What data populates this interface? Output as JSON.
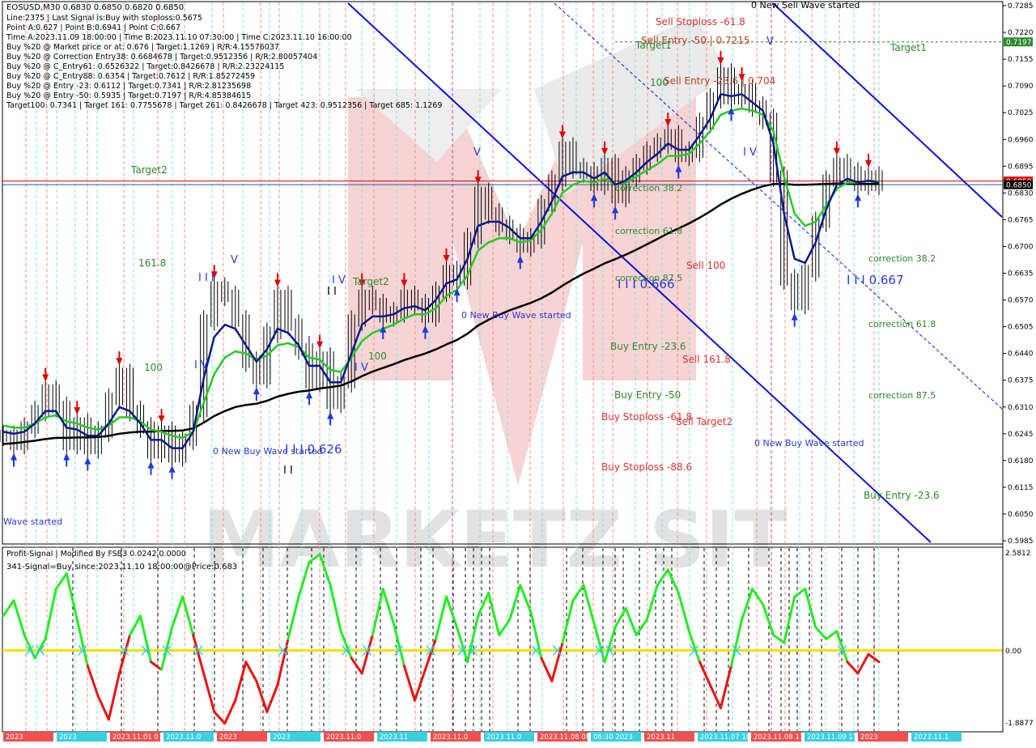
{
  "header": {
    "symbol_line": "EOSUSD,M30  0.6830 0.6850 0.6820 0.6850",
    "info_lines": [
      "Line:2375 | Last Signal is:Buy with stoploss:0.5675",
      "Point A:0.627 | Point B:0.6941 | Point C:0.667",
      "Time A:2023.11.09 18:00:00 | Time B:2023.11.10 07:30:00 | Time C:2023.11.10 16:00:00",
      "Buy %20 @ Market price or at: 0.676 | Target:1.1269 | R/R:4.15576037",
      "Buy %20 @ Correction Entry38: 0.6684678 | Target:0.9512356 | R/R:2.80057404",
      "Buy %20 @ C_Entry61: 0.6526322 | Target:0.8426678 | R/R:2.23224115",
      "Buy %20 @ C_Entry88: 0.6354 | Target:0.7612 | R/R:1.85272459",
      "Buy %20 @ Entry -23: 0.6112 | Target:0.7341 | R/R:2.81235698",
      "Buy %20 @ Entry -50: 0.5935 | Target:0.7197 | R/R:4.85384615",
      "Target100: 0.7341 | Target 161: 0.7755678 | Target 261: 0.8426678 | Target 423: 0.9512356 | Target 685: 1.1269"
    ]
  },
  "indicator": {
    "title": "Profit-Signal | Modified By FSB3 0.0242 0.0000",
    "signal_text": "341-Signal=Buy since:2023.11.10 18:00:00@Price:0.683"
  },
  "price_axis": {
    "ticks": [
      "0.7285",
      "0.7220",
      "0.7155",
      "0.7090",
      "0.7025",
      "0.6960",
      "0.6895",
      "0.6830",
      "0.6765",
      "0.6700",
      "0.6635",
      "0.6570",
      "0.6505",
      "0.6440",
      "0.6375",
      "0.6310",
      "0.6245",
      "0.6180",
      "0.6115",
      "0.6050",
      "0.5985"
    ],
    "badges": {
      "target1": "0.7197",
      "red_line": "0.6859",
      "current": "0.6850"
    }
  },
  "indicator_axis": {
    "ticks": [
      "2.5812",
      "0.00",
      "-1.8877"
    ]
  },
  "annotations": {
    "sell_stoploss_618": "Sell Stoploss -61.8",
    "sell_entry_50": "Sell Entry -50 | 0.7215",
    "target1_left": "Target1",
    "target1_right": "Target1",
    "num_100_top": "100",
    "sell_entry_236": "Sell Entry -23.6 | 0.704",
    "target2_left": "Target2",
    "target2_mid": "Target2",
    "num_1618": "161.8",
    "num_100_left": "100",
    "num_100_mid": "100",
    "correction_382_mid": "correction 38.2",
    "correction_618_mid": "correction 61.8",
    "correction_875_mid": "correction 87.5",
    "sell_100": "Sell 100",
    "pt_0666": "I I I 0.666",
    "pt_0667": "I I I 0.667",
    "pt_0626": "I I I 0.626",
    "new_buy_wave_mid": "0 New Buy Wave started",
    "new_buy_wave_left": "0 New Buy Wave started",
    "new_buy_wave_right": "0 New Buy Wave started",
    "wave_started_edge": "Wave started",
    "new_sell_wave": "0 New Sell Wave started",
    "buy_entry_236_mid": "Buy Entry -23.6",
    "sell_1618": "Sell 161.8",
    "buy_entry_50": "Buy Entry -50",
    "buy_stoploss_618": "Buy Stoploss -61.8",
    "sell_target2": "Sell Target2",
    "buy_stoploss_886": "Buy Stoploss -88.6",
    "correction_382_right": "correction 38.2",
    "correction_618_right": "correction 61.8",
    "correction_875_right": "correction 87.5",
    "buy_entry_236_right": "Buy Entry -23.6",
    "wave_v_1": "V",
    "wave_v_2": "V",
    "wave_v_3": "V",
    "wave_iv_1": "I V",
    "wave_iv_2": "I V",
    "wave_iv_3": "I V",
    "wave_iii_1": "I I I",
    "wave_i": "I",
    "wave_iv_4": "I V",
    "wave_ii": "I I",
    "wave_ii_2": "I I"
  },
  "watermark": "MARKETZ SIT",
  "time_axis": {
    "labels": [
      "2023",
      "2023",
      "2023.11.01 0",
      "2023.11.0",
      "2023",
      "2023",
      "2023.11.0",
      "2023.11",
      "2023.11.0",
      "2023.11.0",
      "2023.11.08 08:30",
      "06:30 2023",
      "2023.11",
      "2023.11.07 10:30",
      "2023.11.08 17:00",
      "2023.11.09 17",
      "2023",
      "2023.11.1"
    ]
  },
  "chart_data": {
    "type": "line",
    "title": "EOSUSD,M30",
    "ylim": [
      0.5985,
      0.7285
    ],
    "series": [
      {
        "name": "price",
        "color": "#000000",
        "values": [
          0.624,
          0.622,
          0.626,
          0.63,
          0.635,
          0.631,
          0.622,
          0.627,
          0.621,
          0.625,
          0.633,
          0.639,
          0.63,
          0.626,
          0.62,
          0.625,
          0.619,
          0.623,
          0.63,
          0.652,
          0.66,
          0.658,
          0.652,
          0.642,
          0.638,
          0.649,
          0.658,
          0.651,
          0.645,
          0.637,
          0.643,
          0.632,
          0.637,
          0.652,
          0.658,
          0.656,
          0.653,
          0.654,
          0.658,
          0.656,
          0.653,
          0.659,
          0.664,
          0.662,
          0.672,
          0.683,
          0.678,
          0.675,
          0.673,
          0.67,
          0.672,
          0.68,
          0.686,
          0.694,
          0.689,
          0.688,
          0.685,
          0.69,
          0.682,
          0.687,
          0.69,
          0.693,
          0.695,
          0.697,
          0.692,
          0.693,
          0.7,
          0.706,
          0.712,
          0.706,
          0.708,
          0.704,
          0.701,
          0.687,
          0.662,
          0.656,
          0.664,
          0.676,
          0.686,
          0.69,
          0.688,
          0.685,
          0.687,
          0.685
        ],
        "ma_fast": [
          0.625,
          0.6245,
          0.625,
          0.627,
          0.63,
          0.63,
          0.626,
          0.6255,
          0.624,
          0.624,
          0.627,
          0.631,
          0.63,
          0.627,
          0.623,
          0.623,
          0.621,
          0.621,
          0.625,
          0.638,
          0.648,
          0.651,
          0.65,
          0.646,
          0.642,
          0.645,
          0.65,
          0.649,
          0.646,
          0.641,
          0.641,
          0.637,
          0.637,
          0.644,
          0.651,
          0.653,
          0.653,
          0.6535,
          0.655,
          0.6555,
          0.6545,
          0.657,
          0.661,
          0.662,
          0.667,
          0.675,
          0.676,
          0.676,
          0.6745,
          0.672,
          0.672,
          0.676,
          0.681,
          0.687,
          0.688,
          0.688,
          0.6865,
          0.688,
          0.685,
          0.686,
          0.688,
          0.6905,
          0.6925,
          0.695,
          0.6935,
          0.6935,
          0.697,
          0.701,
          0.707,
          0.7065,
          0.707,
          0.705,
          0.703,
          0.695,
          0.678,
          0.667,
          0.666,
          0.671,
          0.679,
          0.685,
          0.6865,
          0.6855,
          0.686,
          0.6855
        ],
        "ma_mid": [
          0.6265,
          0.626,
          0.626,
          0.627,
          0.6285,
          0.629,
          0.6275,
          0.627,
          0.626,
          0.6255,
          0.6265,
          0.6285,
          0.6285,
          0.6275,
          0.6255,
          0.625,
          0.624,
          0.6235,
          0.625,
          0.632,
          0.639,
          0.643,
          0.6445,
          0.644,
          0.6425,
          0.6435,
          0.646,
          0.6465,
          0.6455,
          0.643,
          0.6425,
          0.64,
          0.6395,
          0.643,
          0.647,
          0.649,
          0.65,
          0.651,
          0.6525,
          0.6535,
          0.6535,
          0.655,
          0.658,
          0.6595,
          0.663,
          0.669,
          0.671,
          0.672,
          0.672,
          0.671,
          0.6715,
          0.674,
          0.678,
          0.683,
          0.685,
          0.686,
          0.6855,
          0.6865,
          0.685,
          0.6855,
          0.687,
          0.6885,
          0.69,
          0.692,
          0.692,
          0.6925,
          0.695,
          0.698,
          0.702,
          0.703,
          0.7035,
          0.703,
          0.702,
          0.698,
          0.687,
          0.678,
          0.675,
          0.676,
          0.68,
          0.684,
          0.6855,
          0.6855,
          0.686,
          0.6858
        ],
        "ma_slow": [
          0.622,
          0.6222,
          0.6225,
          0.6228,
          0.6232,
          0.6235,
          0.6235,
          0.6236,
          0.6236,
          0.6237,
          0.624,
          0.6245,
          0.6248,
          0.625,
          0.625,
          0.6252,
          0.6252,
          0.6253,
          0.6258,
          0.6272,
          0.6288,
          0.63,
          0.631,
          0.6315,
          0.6318,
          0.6325,
          0.6335,
          0.6342,
          0.6347,
          0.635,
          0.6355,
          0.6358,
          0.6362,
          0.6372,
          0.6385,
          0.6396,
          0.6405,
          0.6414,
          0.6424,
          0.6432,
          0.644,
          0.645,
          0.6462,
          0.6473,
          0.6488,
          0.6508,
          0.6522,
          0.6534,
          0.6545,
          0.6554,
          0.6563,
          0.6574,
          0.6588,
          0.6605,
          0.662,
          0.6634,
          0.6646,
          0.6659,
          0.6669,
          0.668,
          0.6692,
          0.6705,
          0.6718,
          0.6732,
          0.6744,
          0.6756,
          0.677,
          0.6785,
          0.6802,
          0.6816,
          0.6828,
          0.6838,
          0.6846,
          0.6852,
          0.6852,
          0.685,
          0.685,
          0.6851,
          0.6852,
          0.6853,
          0.6853,
          0.6852,
          0.6852,
          0.6852
        ]
      }
    ],
    "levels": {
      "target1": 0.7197,
      "red_line": 0.6859,
      "current": 0.685
    },
    "oscillator": {
      "ylim": [
        -1.8877,
        2.5812
      ],
      "zero": 0.0,
      "values": [
        0.9,
        1.3,
        0.4,
        -0.2,
        0.3,
        1.6,
        2.0,
        0.8,
        -0.4,
        -1.2,
        -1.8,
        -0.6,
        0.4,
        0.9,
        -0.3,
        -0.5,
        0.6,
        1.4,
        0.4,
        -0.6,
        -1.6,
        -1.9,
        -1.3,
        -0.3,
        -0.8,
        -1.6,
        -0.9,
        0.3,
        1.4,
        2.3,
        2.5,
        1.7,
        0.5,
        -0.2,
        -0.6,
        0.4,
        1.6,
        0.7,
        -0.4,
        -1.3,
        -0.5,
        0.3,
        1.4,
        0.6,
        -0.3,
        0.9,
        1.5,
        0.4,
        0.8,
        1.7,
        1.0,
        -0.2,
        -0.8,
        0.2,
        1.3,
        1.7,
        0.7,
        -0.3,
        0.6,
        1.1,
        0.4,
        0.8,
        1.7,
        2.1,
        1.5,
        0.5,
        -0.3,
        -0.9,
        -1.5,
        -0.4,
        0.8,
        1.6,
        1.2,
        0.4,
        0.2,
        1.4,
        1.6,
        0.6,
        0.3,
        0.5,
        -0.3,
        -0.6,
        -0.1,
        -0.3
      ]
    }
  }
}
